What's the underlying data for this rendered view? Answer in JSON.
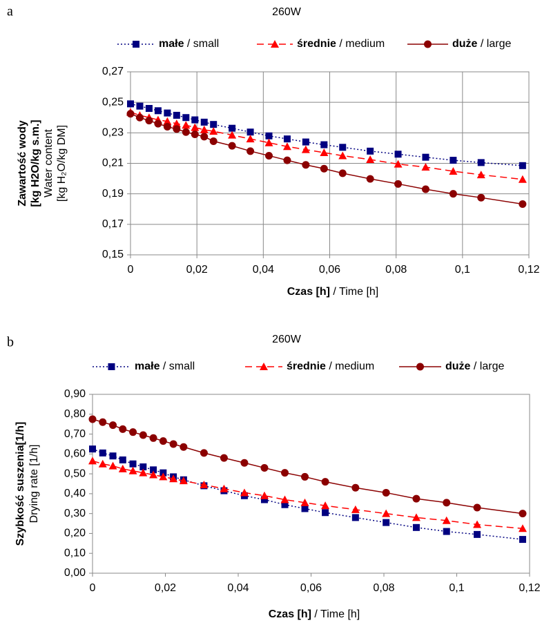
{
  "panels": [
    "a",
    "b"
  ],
  "chart_data": [
    {
      "type": "line",
      "title": "260W",
      "xlabel": "Czas [h] / Time [h]",
      "ylabel": [
        "Zawartość wody",
        "[kg H2O/kg s.m.]",
        "Water content",
        "[kg H₂O/kg DM]"
      ],
      "xlim": [
        0,
        0.12
      ],
      "ylim": [
        0.15,
        0.27
      ],
      "xticks": [
        0,
        {
          "value": 0.02,
          "label": "0,02"
        },
        {
          "value": 0.04,
          "label": "0,04"
        },
        {
          "value": 0.06,
          "label": "0,06"
        },
        {
          "value": 0.08,
          "label": "0,08"
        },
        {
          "value": 0.1,
          "label": "0,1"
        },
        {
          "value": 0.12,
          "label": "0,12"
        }
      ],
      "yticks": [
        {
          "value": 0.15,
          "label": "0,15"
        },
        {
          "value": 0.17,
          "label": "0,17"
        },
        {
          "value": 0.19,
          "label": "0,19"
        },
        {
          "value": 0.21,
          "label": "0,21"
        },
        {
          "value": 0.23,
          "label": "0,23"
        },
        {
          "value": 0.25,
          "label": "0,25"
        },
        {
          "value": 0.27,
          "label": "0,27"
        }
      ],
      "grid": true,
      "x": [
        0,
        0.0028,
        0.0056,
        0.0083,
        0.0111,
        0.0139,
        0.0167,
        0.0194,
        0.0222,
        0.025,
        0.0306,
        0.0361,
        0.0417,
        0.0472,
        0.0528,
        0.0583,
        0.0639,
        0.0722,
        0.0806,
        0.0889,
        0.0972,
        0.1056,
        0.1181
      ],
      "series": [
        {
          "name": "małe / small",
          "color": "#000080",
          "marker": "square",
          "line_style": "dotted",
          "values": [
            0.249,
            0.2475,
            0.246,
            0.2445,
            0.243,
            0.2415,
            0.24,
            0.2385,
            0.237,
            0.2355,
            0.233,
            0.2305,
            0.228,
            0.226,
            0.224,
            0.2222,
            0.2205,
            0.218,
            0.216,
            0.214,
            0.212,
            0.2105,
            0.2085
          ]
        },
        {
          "name": "średnie / medium",
          "color": "#ff0000",
          "marker": "triangle",
          "line_style": "dashed",
          "values": [
            0.2435,
            0.2415,
            0.24,
            0.2385,
            0.2375,
            0.236,
            0.235,
            0.2335,
            0.232,
            0.231,
            0.2285,
            0.226,
            0.2235,
            0.221,
            0.219,
            0.217,
            0.215,
            0.2125,
            0.2095,
            0.2075,
            0.2048,
            0.2025,
            0.1995
          ]
        },
        {
          "name": "duże / large",
          "color": "#8b0000",
          "marker": "circle",
          "line_style": "solid",
          "values": [
            0.2425,
            0.24,
            0.238,
            0.236,
            0.234,
            0.2325,
            0.2305,
            0.229,
            0.2275,
            0.2245,
            0.2215,
            0.218,
            0.215,
            0.212,
            0.209,
            0.2065,
            0.2035,
            0.1998,
            0.1965,
            0.193,
            0.19,
            0.1875,
            0.1833
          ]
        }
      ]
    },
    {
      "type": "line",
      "title": "260W",
      "xlabel": "Czas [h] / Time [h]",
      "ylabel": [
        "Szybkość suszenia[1/h]",
        "Drying rate [1/h]"
      ],
      "xlim": [
        0,
        0.12
      ],
      "ylim": [
        0,
        0.9
      ],
      "xticks": [
        0,
        {
          "value": 0.02,
          "label": "0,02"
        },
        {
          "value": 0.04,
          "label": "0,04"
        },
        {
          "value": 0.06,
          "label": "0,06"
        },
        {
          "value": 0.08,
          "label": "0,08"
        },
        {
          "value": 0.1,
          "label": "0,1"
        },
        {
          "value": 0.12,
          "label": "0,12"
        }
      ],
      "yticks": [
        {
          "value": 0,
          "label": "0,00"
        },
        {
          "value": 0.1,
          "label": "0,10"
        },
        {
          "value": 0.2,
          "label": "0,20"
        },
        {
          "value": 0.3,
          "label": "0,30"
        },
        {
          "value": 0.4,
          "label": "0,40"
        },
        {
          "value": 0.5,
          "label": "0,50"
        },
        {
          "value": 0.6,
          "label": "0,60"
        },
        {
          "value": 0.7,
          "label": "0,70"
        },
        {
          "value": 0.8,
          "label": "0,80"
        },
        {
          "value": 0.9,
          "label": "0,90"
        }
      ],
      "grid": false,
      "x": [
        0,
        0.0028,
        0.0056,
        0.0083,
        0.0111,
        0.0139,
        0.0167,
        0.0194,
        0.0222,
        0.025,
        0.0306,
        0.0361,
        0.0417,
        0.0472,
        0.0528,
        0.0583,
        0.0639,
        0.0722,
        0.0806,
        0.0889,
        0.0972,
        0.1056,
        0.1181
      ],
      "series": [
        {
          "name": "małe / small",
          "color": "#000080",
          "marker": "square",
          "line_style": "dotted",
          "values": [
            0.625,
            0.605,
            0.59,
            0.57,
            0.55,
            0.535,
            0.52,
            0.505,
            0.485,
            0.47,
            0.44,
            0.415,
            0.39,
            0.37,
            0.345,
            0.325,
            0.305,
            0.28,
            0.255,
            0.23,
            0.21,
            0.195,
            0.17
          ]
        },
        {
          "name": "średnie / medium",
          "color": "#ff0000",
          "marker": "triangle",
          "line_style": "dashed",
          "values": [
            0.565,
            0.55,
            0.54,
            0.525,
            0.515,
            0.505,
            0.495,
            0.485,
            0.475,
            0.465,
            0.445,
            0.425,
            0.405,
            0.39,
            0.37,
            0.355,
            0.34,
            0.32,
            0.3,
            0.28,
            0.265,
            0.245,
            0.225
          ]
        },
        {
          "name": "duże / large",
          "color": "#8b0000",
          "marker": "circle",
          "line_style": "solid",
          "values": [
            0.775,
            0.76,
            0.745,
            0.725,
            0.71,
            0.695,
            0.68,
            0.665,
            0.65,
            0.635,
            0.605,
            0.58,
            0.555,
            0.53,
            0.505,
            0.485,
            0.46,
            0.43,
            0.405,
            0.375,
            0.355,
            0.33,
            0.3
          ]
        }
      ]
    }
  ]
}
